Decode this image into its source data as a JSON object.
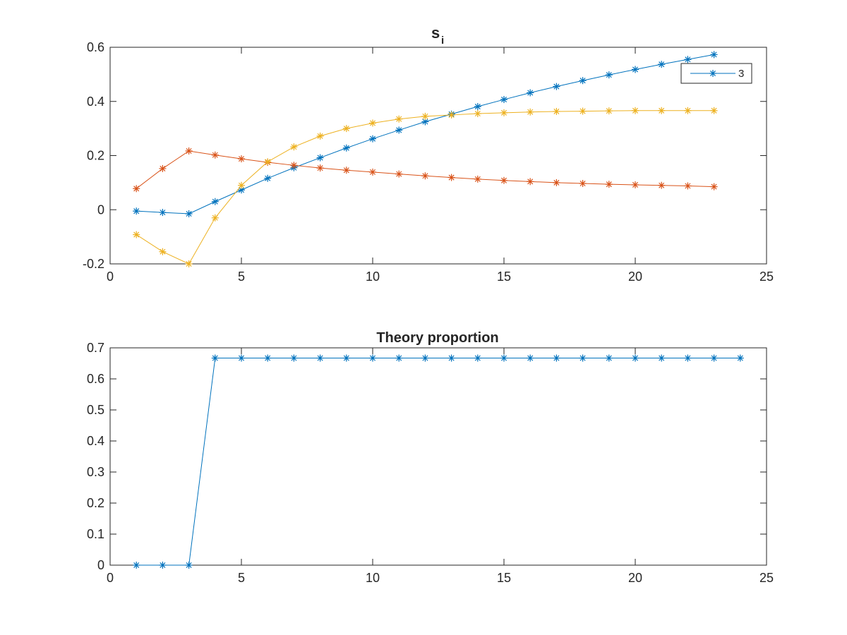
{
  "chart_data": [
    {
      "type": "line",
      "title": "s",
      "title_subscript": "i",
      "xlim": [
        0,
        25
      ],
      "ylim": [
        -0.2,
        0.6
      ],
      "xticks": [
        0,
        5,
        10,
        15,
        20,
        25
      ],
      "xtick_labels": [
        "0",
        "5",
        "10",
        "15",
        "20",
        "25"
      ],
      "yticks": [
        -0.2,
        0,
        0.2,
        0.4,
        0.6
      ],
      "ytick_labels": [
        "-0.2",
        "0",
        "0.2",
        "0.4",
        "0.6"
      ],
      "grid": false,
      "legend": {
        "position": "top-right",
        "entries": [
          "3"
        ]
      },
      "x": [
        1,
        2,
        3,
        4,
        5,
        6,
        7,
        8,
        9,
        10,
        11,
        12,
        13,
        14,
        15,
        16,
        17,
        18,
        19,
        20,
        21,
        22,
        23
      ],
      "series": [
        {
          "name": "3",
          "color": "#0072BD",
          "marker": "asterisk",
          "values": [
            -0.005,
            -0.01,
            -0.015,
            0.03,
            0.073,
            0.116,
            0.155,
            0.192,
            0.228,
            0.262,
            0.294,
            0.325,
            0.353,
            0.381,
            0.407,
            0.432,
            0.455,
            0.477,
            0.498,
            0.518,
            0.537,
            0.555,
            0.573
          ]
        },
        {
          "color": "#D95319",
          "marker": "asterisk",
          "values": [
            0.078,
            0.152,
            0.217,
            0.202,
            0.188,
            0.175,
            0.164,
            0.154,
            0.146,
            0.139,
            0.132,
            0.125,
            0.119,
            0.113,
            0.108,
            0.104,
            0.1,
            0.097,
            0.094,
            0.092,
            0.09,
            0.088,
            0.085
          ]
        },
        {
          "color": "#EDB120",
          "marker": "asterisk",
          "values": [
            -0.092,
            -0.155,
            -0.2,
            -0.03,
            0.09,
            0.177,
            0.232,
            0.272,
            0.3,
            0.32,
            0.335,
            0.345,
            0.35,
            0.355,
            0.358,
            0.361,
            0.363,
            0.364,
            0.365,
            0.366,
            0.366,
            0.366,
            0.366
          ]
        }
      ]
    },
    {
      "type": "line",
      "title": "Theory proportion",
      "xlim": [
        0,
        25
      ],
      "ylim": [
        0,
        0.7
      ],
      "xticks": [
        0,
        5,
        10,
        15,
        20,
        25
      ],
      "xtick_labels": [
        "0",
        "5",
        "10",
        "15",
        "20",
        "25"
      ],
      "yticks": [
        0,
        0.1,
        0.2,
        0.3,
        0.4,
        0.5,
        0.6,
        0.7
      ],
      "ytick_labels": [
        "0",
        "0.1",
        "0.2",
        "0.3",
        "0.4",
        "0.5",
        "0.6",
        "0.7"
      ],
      "grid": false,
      "x": [
        1,
        2,
        3,
        4,
        5,
        6,
        7,
        8,
        9,
        10,
        11,
        12,
        13,
        14,
        15,
        16,
        17,
        18,
        19,
        20,
        21,
        22,
        23,
        24
      ],
      "series": [
        {
          "color": "#0072BD",
          "marker": "asterisk",
          "values": [
            0,
            0,
            0,
            0.667,
            0.667,
            0.667,
            0.667,
            0.667,
            0.667,
            0.667,
            0.667,
            0.667,
            0.667,
            0.667,
            0.667,
            0.667,
            0.667,
            0.667,
            0.667,
            0.667,
            0.667,
            0.667,
            0.667,
            0.667
          ]
        }
      ]
    }
  ]
}
